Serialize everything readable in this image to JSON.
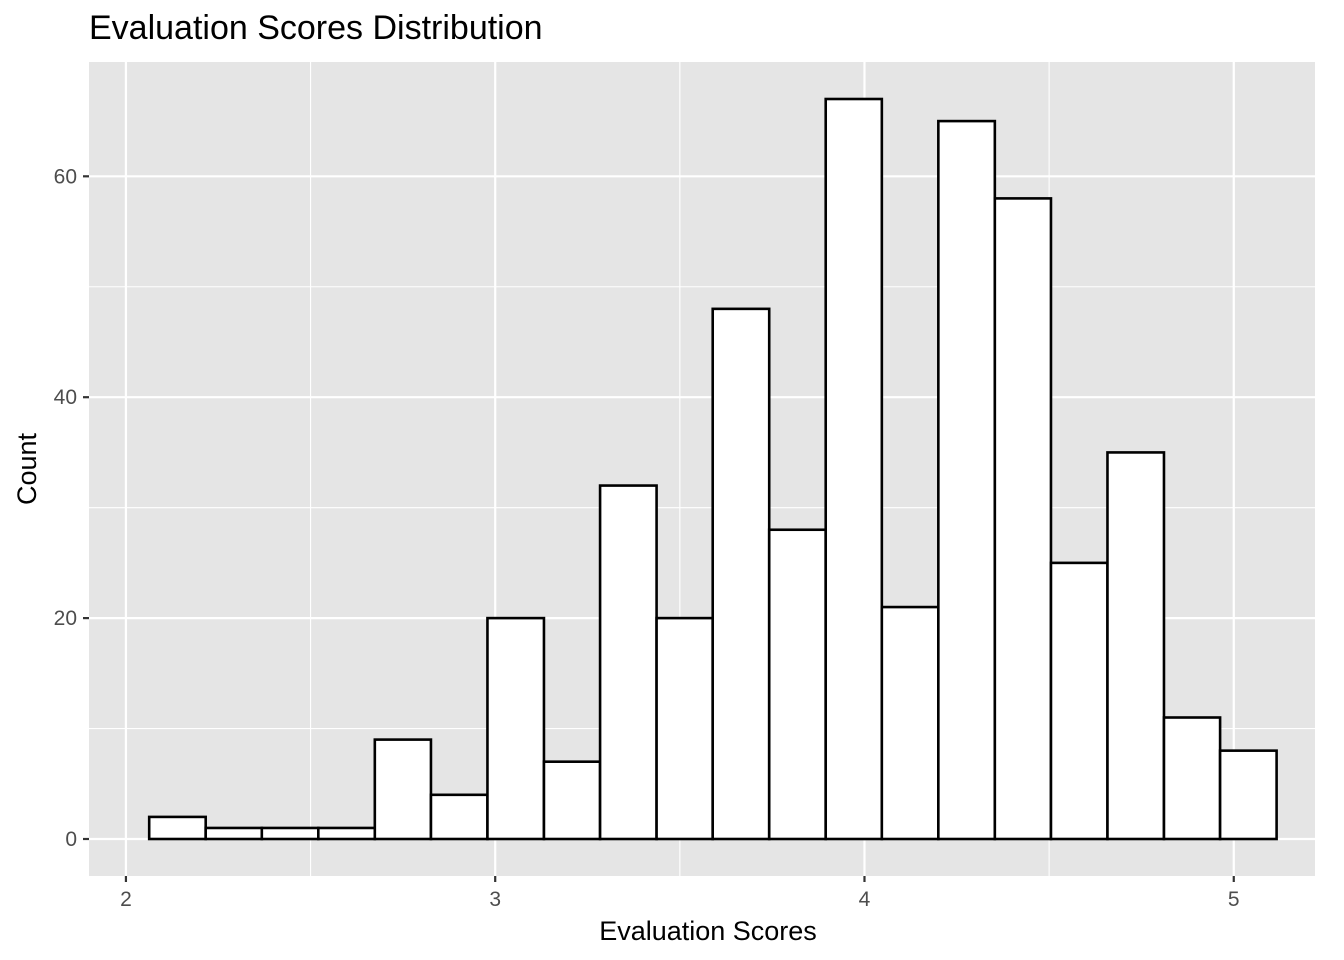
{
  "chart_data": {
    "type": "bar",
    "subtype": "histogram",
    "title": "Evaluation Scores Distribution",
    "xlabel": "Evaluation Scores",
    "ylabel": "Count",
    "xlim": [
      1.9,
      5.22
    ],
    "ylim": [
      -3.35,
      70.35
    ],
    "x_ticks": [
      2,
      3,
      4,
      5
    ],
    "x_tick_labels": [
      "2",
      "3",
      "4",
      "5"
    ],
    "y_ticks": [
      0,
      20,
      40,
      60
    ],
    "y_tick_labels": [
      "0",
      "20",
      "40",
      "60"
    ],
    "grid": true,
    "bar_fill": "#ffffff",
    "bar_outline": "#000000",
    "panel_background": "#e5e5e5",
    "bins": [
      {
        "x_start": 2.063,
        "x_end": 2.216,
        "count": 2
      },
      {
        "x_start": 2.216,
        "x_end": 2.368,
        "count": 1
      },
      {
        "x_start": 2.368,
        "x_end": 2.521,
        "count": 1
      },
      {
        "x_start": 2.521,
        "x_end": 2.674,
        "count": 1
      },
      {
        "x_start": 2.674,
        "x_end": 2.826,
        "count": 9
      },
      {
        "x_start": 2.826,
        "x_end": 2.979,
        "count": 4
      },
      {
        "x_start": 2.979,
        "x_end": 3.132,
        "count": 20
      },
      {
        "x_start": 3.132,
        "x_end": 3.284,
        "count": 7
      },
      {
        "x_start": 3.284,
        "x_end": 3.437,
        "count": 32
      },
      {
        "x_start": 3.437,
        "x_end": 3.589,
        "count": 20
      },
      {
        "x_start": 3.589,
        "x_end": 3.742,
        "count": 48
      },
      {
        "x_start": 3.742,
        "x_end": 3.895,
        "count": 28
      },
      {
        "x_start": 3.895,
        "x_end": 4.047,
        "count": 67
      },
      {
        "x_start": 4.047,
        "x_end": 4.2,
        "count": 21
      },
      {
        "x_start": 4.2,
        "x_end": 4.353,
        "count": 65
      },
      {
        "x_start": 4.353,
        "x_end": 4.505,
        "count": 58
      },
      {
        "x_start": 4.505,
        "x_end": 4.658,
        "count": 25
      },
      {
        "x_start": 4.658,
        "x_end": 4.811,
        "count": 35
      },
      {
        "x_start": 4.811,
        "x_end": 4.963,
        "count": 11
      },
      {
        "x_start": 4.963,
        "x_end": 5.116,
        "count": 8
      }
    ]
  }
}
